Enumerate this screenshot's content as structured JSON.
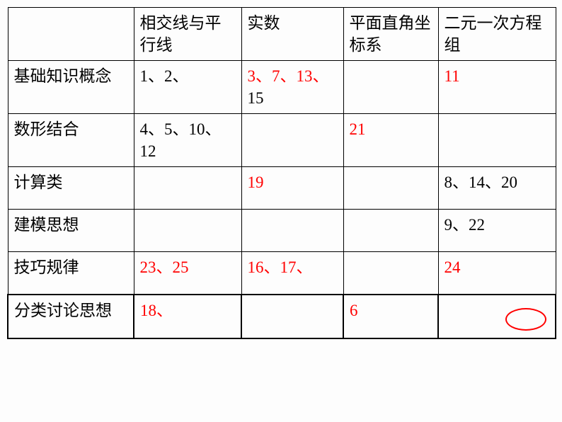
{
  "columns": [
    {
      "label": ""
    },
    {
      "label": "相交线与平行线"
    },
    {
      "label": "实数"
    },
    {
      "label": "平面直角坐标系"
    },
    {
      "label": "二元一次方程组"
    }
  ],
  "rows": [
    {
      "label": "基础知识概念",
      "cells": [
        {
          "segments": [
            {
              "text": "1、2、",
              "color": "black"
            }
          ]
        },
        {
          "segments": [
            {
              "text": "3、7、13、",
              "color": "red"
            },
            {
              "text": "15",
              "color": "black"
            }
          ]
        },
        {
          "segments": []
        },
        {
          "segments": [
            {
              "text": "11",
              "color": "red"
            }
          ]
        }
      ]
    },
    {
      "label": "数形结合",
      "cells": [
        {
          "segments": [
            {
              "text": "4、5、10、12",
              "color": "black"
            }
          ]
        },
        {
          "segments": []
        },
        {
          "segments": [
            {
              "text": "21",
              "color": "red"
            }
          ]
        },
        {
          "segments": []
        }
      ]
    },
    {
      "label": "计算类",
      "cells": [
        {
          "segments": []
        },
        {
          "segments": [
            {
              "text": "19",
              "color": "red"
            }
          ]
        },
        {
          "segments": []
        },
        {
          "segments": [
            {
              "text": "8、14、20",
              "color": "black"
            }
          ]
        }
      ]
    },
    {
      "label": "建模思想",
      "cells": [
        {
          "segments": []
        },
        {
          "segments": []
        },
        {
          "segments": []
        },
        {
          "segments": [
            {
              "text": "9、22",
              "color": "black"
            }
          ]
        }
      ]
    },
    {
      "label": "技巧规律",
      "cells": [
        {
          "segments": [
            {
              "text": "23、25",
              "color": "red"
            }
          ]
        },
        {
          "segments": [
            {
              "text": "16、17、",
              "color": "red"
            }
          ]
        },
        {
          "segments": []
        },
        {
          "segments": [
            {
              "text": "24",
              "color": "red"
            }
          ]
        }
      ]
    },
    {
      "label": "分类讨论思想",
      "cells": [
        {
          "segments": [
            {
              "text": "18、",
              "color": "red"
            }
          ]
        },
        {
          "segments": []
        },
        {
          "segments": [
            {
              "text": "6",
              "color": "red"
            }
          ]
        },
        {
          "segments": [],
          "oval": true
        }
      ]
    }
  ],
  "colors": {
    "black": "#000000",
    "red": "#ff0000"
  }
}
